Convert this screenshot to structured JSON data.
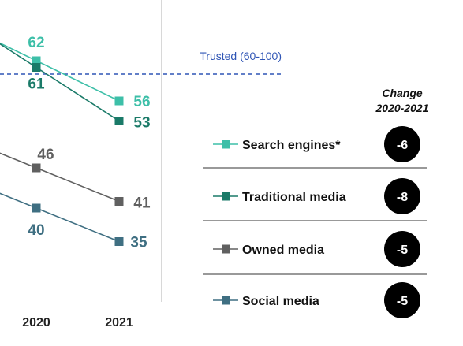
{
  "chart_data": {
    "type": "line",
    "categories": [
      "2020",
      "2021"
    ],
    "series": [
      {
        "name": "Search engines*",
        "values": [
          62,
          56
        ],
        "color": "#3dbfa8",
        "change": "-6"
      },
      {
        "name": "Traditional media",
        "values": [
          61,
          53
        ],
        "color": "#1a7a68",
        "change": "-8"
      },
      {
        "name": "Owned media",
        "values": [
          46,
          41
        ],
        "color": "#606060",
        "change": "-5"
      },
      {
        "name": "Social media",
        "values": [
          40,
          35
        ],
        "color": "#3f6f82",
        "change": "-5"
      }
    ],
    "reference_line": {
      "value": 60,
      "label": "Trusted (60-100)",
      "color": "#2f55b5"
    },
    "change_header": [
      "Change",
      "2020-2021"
    ]
  }
}
